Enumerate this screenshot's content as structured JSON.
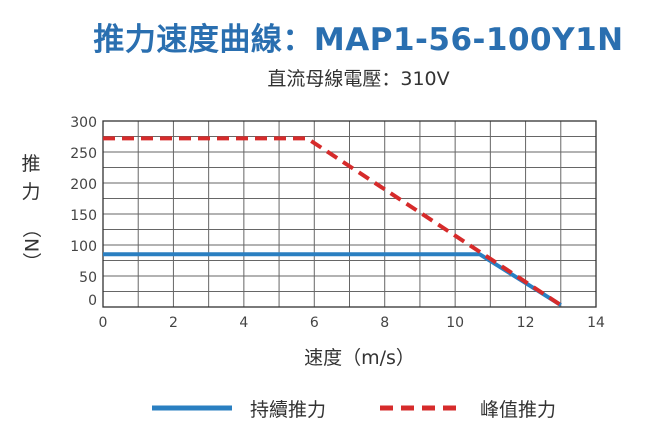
{
  "title_prefix": "推力速度曲線：",
  "title_model": "MAP1-56-100Y1N",
  "subtitle": "直流母線電壓：310V",
  "colors": {
    "title": "#2a6fb0",
    "continuous": "#2a7fc1",
    "peak": "#d62b2b",
    "grid": "#555555"
  },
  "chart_data": {
    "type": "line",
    "xlabel": "速度（m/s）",
    "ylabel_chars": [
      "推",
      "力"
    ],
    "ylabel_unit": "（N）",
    "xlim": [
      0,
      14
    ],
    "ylim": [
      0,
      300
    ],
    "x_ticks": [
      "0",
      "2",
      "4",
      "6",
      "8",
      "10",
      "12",
      "14"
    ],
    "y_ticks": [
      "0",
      "50",
      "100",
      "150",
      "200",
      "250",
      "300"
    ],
    "series": [
      {
        "name": "持續推力",
        "style": "solid",
        "color": "#2a7fc1",
        "points": [
          [
            0,
            85
          ],
          [
            10.7,
            85
          ],
          [
            13.0,
            3
          ]
        ]
      },
      {
        "name": "峰值推力",
        "style": "dashed",
        "color": "#d62b2b",
        "points": [
          [
            0,
            272
          ],
          [
            5.8,
            272
          ],
          [
            13.0,
            3
          ]
        ]
      }
    ]
  }
}
